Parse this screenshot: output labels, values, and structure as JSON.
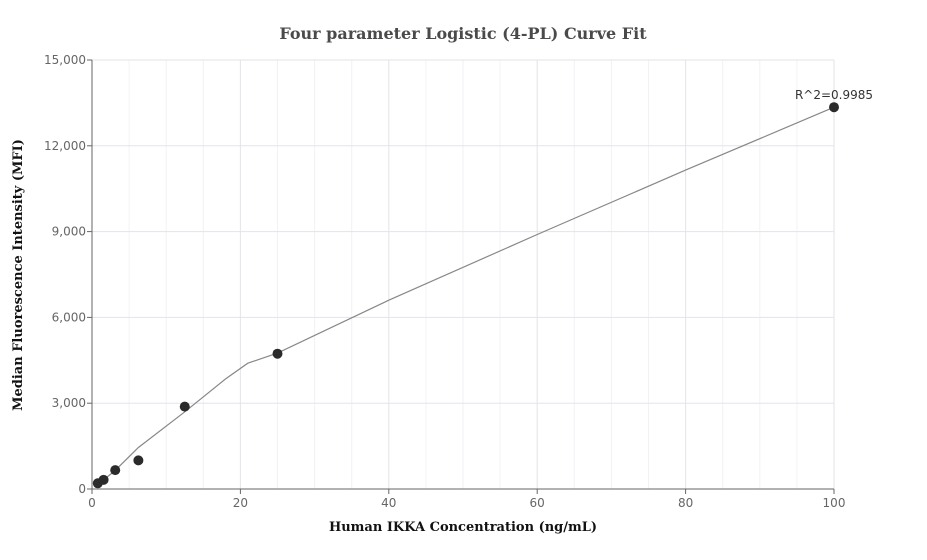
{
  "chart_data": {
    "type": "scatter",
    "title": "Four parameter Logistic (4-PL) Curve Fit",
    "xlabel": "Human IKKA Concentration (ng/mL)",
    "ylabel": "Median Fluorescence Intensity (MFI)",
    "xlim": [
      0,
      100
    ],
    "ylim": [
      0,
      15000
    ],
    "x_ticks": [
      0,
      20,
      40,
      60,
      80,
      100
    ],
    "x_tick_labels": [
      "0",
      "20",
      "40",
      "60",
      "80",
      "100"
    ],
    "y_ticks": [
      0,
      3000,
      6000,
      9000,
      12000,
      15000
    ],
    "y_tick_labels": [
      "0",
      "3,000",
      "6,000",
      "9,000",
      "12,000",
      "15,000"
    ],
    "grid": true,
    "series": [
      {
        "points": [
          {
            "x": 0.78,
            "y": 200
          },
          {
            "x": 1.56,
            "y": 320
          },
          {
            "x": 3.13,
            "y": 660
          },
          {
            "x": 6.25,
            "y": 1000
          },
          {
            "x": 12.5,
            "y": 2880
          },
          {
            "x": 25,
            "y": 4730
          },
          {
            "x": 100,
            "y": 13350
          }
        ]
      }
    ],
    "fit_curve": {
      "x": [
        0.78,
        3.13,
        6.25,
        12.5,
        18,
        21,
        25,
        40,
        60,
        80,
        100
      ],
      "y": [
        150,
        650,
        1450,
        2700,
        3850,
        4400,
        4750,
        6600,
        8900,
        11150,
        13350
      ]
    },
    "annotations": [
      {
        "text": "R^2=0.9985",
        "x": 100,
        "y": 13350
      }
    ]
  }
}
